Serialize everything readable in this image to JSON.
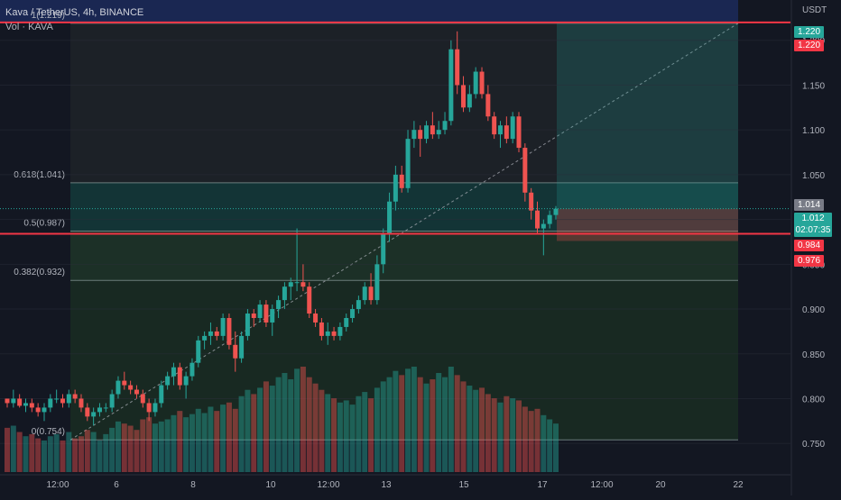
{
  "header": {
    "title": "Kava / TetherUS, 4h, BINANCE",
    "volume_label": "Vol · KAVA"
  },
  "price_axis_unit": "USDT",
  "tags": {
    "top_green": "1.220",
    "top_red": "1.220",
    "last_price": "1.012",
    "countdown": "02:07:35",
    "gray": "1.014",
    "red_level": "0.984",
    "stop": "0.976"
  },
  "colors": {
    "up": "#26a69a",
    "down": "#ef5350",
    "level_line": "#f23645",
    "background": "#131722"
  },
  "chart_data": {
    "type": "candlestick",
    "symbol": "KAVA/USDT",
    "interval": "4h",
    "y_axis": {
      "ticks": [
        0.75,
        0.8,
        0.85,
        0.9,
        0.95,
        1.0,
        1.05,
        1.1,
        1.15,
        1.2
      ],
      "range": [
        0.715,
        1.245
      ]
    },
    "x_axis": {
      "ticks": [
        "12:00",
        "6",
        "8",
        "10",
        "12:00",
        "13",
        "15",
        "17",
        "12:00",
        "20",
        "22"
      ]
    },
    "fibonacci": {
      "levels": [
        {
          "label": "1(1.219)",
          "value": 1.219
        },
        {
          "label": "0.618(1.041)",
          "value": 1.041
        },
        {
          "label": "0.5(0.987)",
          "value": 0.987
        },
        {
          "label": "0.382(0.932)",
          "value": 0.932
        },
        {
          "label": "0(0.754)",
          "value": 0.754
        }
      ]
    },
    "horizontal_lines": [
      1.22,
      0.984
    ],
    "position": {
      "type": "long",
      "entry": 1.012,
      "target": 1.22,
      "stop": 0.976
    },
    "candles": [
      [
        0.8,
        0.8,
        0.79,
        0.795
      ],
      [
        0.795,
        0.81,
        0.79,
        0.8
      ],
      [
        0.8,
        0.805,
        0.79,
        0.792
      ],
      [
        0.792,
        0.8,
        0.785,
        0.795
      ],
      [
        0.795,
        0.8,
        0.785,
        0.79
      ],
      [
        0.79,
        0.795,
        0.78,
        0.785
      ],
      [
        0.785,
        0.795,
        0.775,
        0.79
      ],
      [
        0.79,
        0.805,
        0.785,
        0.8
      ],
      [
        0.8,
        0.81,
        0.795,
        0.8
      ],
      [
        0.8,
        0.805,
        0.79,
        0.795
      ],
      [
        0.795,
        0.81,
        0.79,
        0.805
      ],
      [
        0.805,
        0.81,
        0.795,
        0.8
      ],
      [
        0.8,
        0.805,
        0.785,
        0.79
      ],
      [
        0.79,
        0.795,
        0.775,
        0.78
      ],
      [
        0.78,
        0.79,
        0.77,
        0.785
      ],
      [
        0.785,
        0.795,
        0.78,
        0.79
      ],
      [
        0.79,
        0.795,
        0.785,
        0.79
      ],
      [
        0.79,
        0.81,
        0.785,
        0.805
      ],
      [
        0.805,
        0.825,
        0.8,
        0.82
      ],
      [
        0.82,
        0.83,
        0.81,
        0.815
      ],
      [
        0.815,
        0.82,
        0.805,
        0.81
      ],
      [
        0.81,
        0.815,
        0.8,
        0.805
      ],
      [
        0.805,
        0.81,
        0.79,
        0.795
      ],
      [
        0.795,
        0.8,
        0.775,
        0.785
      ],
      [
        0.785,
        0.8,
        0.78,
        0.795
      ],
      [
        0.795,
        0.82,
        0.79,
        0.815
      ],
      [
        0.815,
        0.83,
        0.81,
        0.825
      ],
      [
        0.825,
        0.84,
        0.815,
        0.835
      ],
      [
        0.835,
        0.84,
        0.81,
        0.815
      ],
      [
        0.815,
        0.83,
        0.8,
        0.825
      ],
      [
        0.825,
        0.845,
        0.82,
        0.84
      ],
      [
        0.84,
        0.87,
        0.835,
        0.865
      ],
      [
        0.865,
        0.875,
        0.855,
        0.87
      ],
      [
        0.87,
        0.885,
        0.86,
        0.875
      ],
      [
        0.875,
        0.88,
        0.865,
        0.87
      ],
      [
        0.87,
        0.895,
        0.865,
        0.89
      ],
      [
        0.89,
        0.895,
        0.855,
        0.86
      ],
      [
        0.86,
        0.875,
        0.83,
        0.845
      ],
      [
        0.845,
        0.875,
        0.84,
        0.87
      ],
      [
        0.87,
        0.9,
        0.865,
        0.895
      ],
      [
        0.895,
        0.9,
        0.88,
        0.89
      ],
      [
        0.89,
        0.91,
        0.885,
        0.905
      ],
      [
        0.905,
        0.91,
        0.88,
        0.885
      ],
      [
        0.885,
        0.905,
        0.87,
        0.9
      ],
      [
        0.9,
        0.915,
        0.89,
        0.91
      ],
      [
        0.91,
        0.93,
        0.9,
        0.925
      ],
      [
        0.925,
        0.935,
        0.91,
        0.93
      ],
      [
        0.93,
        0.99,
        0.92,
        0.93
      ],
      [
        0.93,
        0.95,
        0.92,
        0.925
      ],
      [
        0.925,
        0.93,
        0.89,
        0.895
      ],
      [
        0.895,
        0.9,
        0.88,
        0.885
      ],
      [
        0.885,
        0.89,
        0.865,
        0.87
      ],
      [
        0.87,
        0.885,
        0.86,
        0.875
      ],
      [
        0.875,
        0.88,
        0.865,
        0.87
      ],
      [
        0.87,
        0.885,
        0.865,
        0.88
      ],
      [
        0.88,
        0.895,
        0.875,
        0.89
      ],
      [
        0.89,
        0.905,
        0.885,
        0.9
      ],
      [
        0.9,
        0.915,
        0.895,
        0.91
      ],
      [
        0.91,
        0.93,
        0.905,
        0.925
      ],
      [
        0.925,
        0.94,
        0.905,
        0.91
      ],
      [
        0.91,
        0.96,
        0.905,
        0.95
      ],
      [
        0.95,
        0.99,
        0.94,
        0.985
      ],
      [
        0.985,
        1.03,
        0.975,
        1.02
      ],
      [
        1.02,
        1.06,
        1.01,
        1.05
      ],
      [
        1.05,
        1.06,
        1.03,
        1.035
      ],
      [
        1.035,
        1.1,
        1.03,
        1.09
      ],
      [
        1.09,
        1.11,
        1.08,
        1.1
      ],
      [
        1.1,
        1.105,
        1.07,
        1.09
      ],
      [
        1.09,
        1.11,
        1.085,
        1.105
      ],
      [
        1.105,
        1.12,
        1.09,
        1.095
      ],
      [
        1.095,
        1.11,
        1.09,
        1.1
      ],
      [
        1.1,
        1.12,
        1.095,
        1.11
      ],
      [
        1.11,
        1.2,
        1.105,
        1.19
      ],
      [
        1.19,
        1.21,
        1.14,
        1.15
      ],
      [
        1.15,
        1.16,
        1.12,
        1.125
      ],
      [
        1.125,
        1.15,
        1.12,
        1.14
      ],
      [
        1.14,
        1.17,
        1.135,
        1.165
      ],
      [
        1.165,
        1.17,
        1.135,
        1.14
      ],
      [
        1.14,
        1.15,
        1.11,
        1.115
      ],
      [
        1.115,
        1.12,
        1.09,
        1.095
      ],
      [
        1.095,
        1.11,
        1.08,
        1.105
      ],
      [
        1.105,
        1.115,
        1.085,
        1.09
      ],
      [
        1.09,
        1.12,
        1.085,
        1.115
      ],
      [
        1.115,
        1.12,
        1.075,
        1.08
      ],
      [
        1.08,
        1.085,
        1.02,
        1.03
      ],
      [
        1.03,
        1.035,
        1.0,
        1.01
      ],
      [
        1.01,
        1.02,
        0.985,
        0.99
      ],
      [
        0.99,
        1.0,
        0.96,
        0.995
      ],
      [
        0.995,
        1.01,
        0.99,
        1.005
      ],
      [
        1.005,
        1.015,
        1.0,
        1.012
      ]
    ],
    "volume": [
      0.42,
      0.44,
      0.38,
      0.34,
      0.36,
      0.32,
      0.3,
      0.34,
      0.36,
      0.3,
      0.38,
      0.32,
      0.34,
      0.4,
      0.38,
      0.3,
      0.36,
      0.42,
      0.48,
      0.46,
      0.44,
      0.4,
      0.5,
      0.52,
      0.46,
      0.48,
      0.5,
      0.54,
      0.58,
      0.52,
      0.55,
      0.6,
      0.56,
      0.62,
      0.58,
      0.64,
      0.66,
      0.6,
      0.72,
      0.78,
      0.74,
      0.8,
      0.86,
      0.82,
      0.9,
      0.94,
      0.88,
      0.98,
      1.0,
      0.9,
      0.84,
      0.78,
      0.74,
      0.7,
      0.66,
      0.68,
      0.64,
      0.72,
      0.76,
      0.7,
      0.8,
      0.86,
      0.9,
      0.96,
      0.92,
      0.98,
      1.0,
      0.9,
      0.84,
      0.88,
      0.94,
      0.9,
      1.0,
      0.92,
      0.86,
      0.82,
      0.78,
      0.8,
      0.74,
      0.7,
      0.66,
      0.72,
      0.7,
      0.68,
      0.62,
      0.58,
      0.6,
      0.54,
      0.5,
      0.46
    ],
    "volume_peaks": [
      0.12,
      0.14,
      0.1,
      0.12,
      0.1,
      0.14,
      0.12,
      0.1,
      0.16,
      0.18,
      0.2,
      0.22,
      0.24,
      0.26,
      0.28,
      0.3,
      0.32,
      0.34,
      0.36,
      0.38
    ]
  }
}
